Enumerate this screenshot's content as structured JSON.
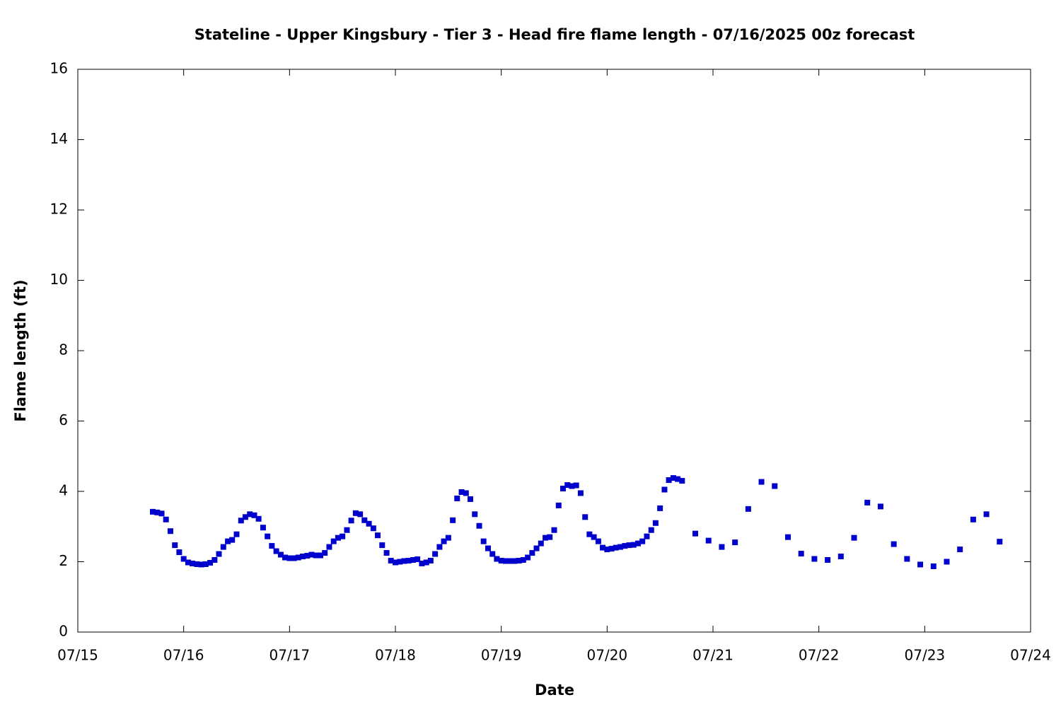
{
  "chart_data": {
    "type": "scatter",
    "title": "Stateline - Upper Kingsbury - Tier 3 - Head fire flame length - 07/16/2025 00z forecast",
    "x_label": "Date",
    "y_label": "Flame length (ft)",
    "xlim": [
      15,
      24
    ],
    "xticks": [
      {
        "value": 15,
        "label": "07/15"
      },
      {
        "value": 16,
        "label": "07/16"
      },
      {
        "value": 17,
        "label": "07/17"
      },
      {
        "value": 18,
        "label": "07/18"
      },
      {
        "value": 19,
        "label": "07/19"
      },
      {
        "value": 20,
        "label": "07/20"
      },
      {
        "value": 21,
        "label": "07/21"
      },
      {
        "value": 22,
        "label": "07/22"
      },
      {
        "value": 23,
        "label": "07/23"
      },
      {
        "value": 24,
        "label": "07/24"
      }
    ],
    "ylim": [
      0,
      16
    ],
    "yticks": [
      0,
      2,
      4,
      6,
      8,
      10,
      12,
      14,
      16
    ],
    "grid": false,
    "series": [
      {
        "color": "#0000cc",
        "x": [
          15.708,
          15.75,
          15.792,
          15.833,
          15.875,
          15.917,
          15.958,
          16,
          16.042,
          16.083,
          16.125,
          16.167,
          16.208,
          16.25,
          16.292,
          16.333,
          16.375,
          16.417,
          16.458,
          16.5,
          16.542,
          16.583,
          16.625,
          16.667,
          16.708,
          16.75,
          16.792,
          16.833,
          16.875,
          16.917,
          16.958,
          17,
          17.042,
          17.083,
          17.125,
          17.167,
          17.208,
          17.25,
          17.292,
          17.333,
          17.375,
          17.417,
          17.458,
          17.5,
          17.542,
          17.583,
          17.625,
          17.667,
          17.708,
          17.75,
          17.792,
          17.833,
          17.875,
          17.917,
          17.958,
          18,
          18.042,
          18.083,
          18.125,
          18.167,
          18.208,
          18.25,
          18.292,
          18.333,
          18.375,
          18.417,
          18.458,
          18.5,
          18.542,
          18.583,
          18.625,
          18.667,
          18.708,
          18.75,
          18.792,
          18.833,
          18.875,
          18.917,
          18.958,
          19,
          19.042,
          19.083,
          19.125,
          19.167,
          19.208,
          19.25,
          19.292,
          19.333,
          19.375,
          19.417,
          19.458,
          19.5,
          19.542,
          19.583,
          19.625,
          19.667,
          19.708,
          19.75,
          19.792,
          19.833,
          19.875,
          19.917,
          19.958,
          20,
          20.042,
          20.083,
          20.125,
          20.167,
          20.208,
          20.25,
          20.292,
          20.333,
          20.375,
          20.417,
          20.458,
          20.5,
          20.542,
          20.583,
          20.625,
          20.667,
          20.708,
          20.833,
          20.958,
          21.083,
          21.208,
          21.333,
          21.458,
          21.583,
          21.708,
          21.833,
          21.958,
          22.083,
          22.208,
          22.333,
          22.458,
          22.583,
          22.708,
          22.833,
          22.958,
          23.083,
          23.208,
          23.333,
          23.458,
          23.583,
          23.708
        ],
        "values": [
          3.42,
          3.4,
          3.37,
          3.2,
          2.87,
          2.47,
          2.27,
          2.08,
          1.98,
          1.95,
          1.93,
          1.92,
          1.93,
          1.97,
          2.05,
          2.22,
          2.42,
          2.58,
          2.62,
          2.78,
          3.17,
          3.27,
          3.35,
          3.32,
          3.22,
          2.97,
          2.72,
          2.45,
          2.3,
          2.2,
          2.12,
          2.1,
          2.1,
          2.12,
          2.15,
          2.17,
          2.2,
          2.18,
          2.18,
          2.25,
          2.42,
          2.58,
          2.68,
          2.72,
          2.9,
          3.17,
          3.38,
          3.35,
          3.18,
          3.08,
          2.95,
          2.75,
          2.47,
          2.25,
          2.03,
          1.98,
          2,
          2.02,
          2.03,
          2.05,
          2.07,
          1.95,
          1.98,
          2.03,
          2.22,
          2.42,
          2.58,
          2.68,
          3.18,
          3.8,
          3.98,
          3.95,
          3.78,
          3.35,
          3.02,
          2.58,
          2.38,
          2.22,
          2.08,
          2.03,
          2.02,
          2.02,
          2.02,
          2.03,
          2.05,
          2.12,
          2.25,
          2.38,
          2.52,
          2.68,
          2.7,
          2.9,
          3.6,
          4.08,
          4.18,
          4.15,
          4.17,
          3.95,
          3.27,
          2.78,
          2.7,
          2.58,
          2.4,
          2.35,
          2.37,
          2.4,
          2.42,
          2.45,
          2.47,
          2.48,
          2.52,
          2.58,
          2.72,
          2.9,
          3.1,
          3.52,
          4.05,
          4.32,
          4.38,
          4.35,
          4.3,
          2.8,
          2.6,
          2.42,
          2.55,
          3.5,
          4.27,
          4.15,
          2.7,
          2.23,
          2.08,
          2.05,
          2.15,
          2.68,
          3.68,
          3.57,
          2.5,
          2.08,
          1.92,
          1.87,
          2,
          2.35,
          3.2,
          3.35,
          2.57
        ]
      }
    ]
  }
}
